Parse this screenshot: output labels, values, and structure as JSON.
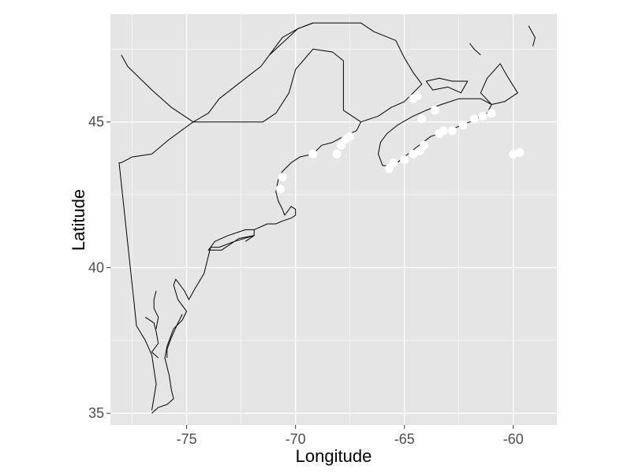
{
  "chart_data": {
    "type": "scatter",
    "title": "",
    "xlabel": "Longitude",
    "ylabel": "Latitude",
    "xlim": [
      -78.5,
      -58.0
    ],
    "ylim": [
      34.6,
      48.7
    ],
    "x_ticks": [
      -75,
      -70,
      -65,
      -60
    ],
    "y_ticks": [
      35,
      40,
      45
    ],
    "x_tick_labels": [
      "-75",
      "-70",
      "-65",
      "-60"
    ],
    "y_tick_labels": [
      "35",
      "40",
      "45"
    ],
    "grid": true,
    "legend": "none",
    "background_color": "#e5e5e5",
    "gridline_color": "#ffffff",
    "point_color": "#ffffff",
    "outline_color": "#000000",
    "series": [
      {
        "x": [
          -70.7,
          -70.6,
          -69.2,
          -68.1,
          -67.9,
          -67.7,
          -67.5,
          -65.7,
          -65.5,
          -65.0,
          -64.6,
          -64.3,
          -64.1,
          -64.6,
          -64.4,
          -64.2,
          -63.4,
          -63.6,
          -63.2,
          -62.8,
          -62.3,
          -61.8,
          -61.4,
          -61.0,
          -60.0,
          -59.7
        ],
        "y": [
          42.7,
          43.1,
          43.9,
          43.9,
          44.2,
          44.4,
          44.5,
          43.4,
          43.6,
          43.7,
          43.9,
          44.0,
          44.2,
          45.8,
          45.9,
          45.1,
          44.6,
          45.4,
          44.7,
          44.7,
          44.9,
          45.1,
          45.2,
          45.3,
          43.9,
          43.95
        ]
      }
    ],
    "coastline": [
      [
        [
          -76.6,
          35.0
        ],
        [
          -76.3,
          35.2
        ],
        [
          -75.9,
          35.3
        ],
        [
          -75.6,
          35.5
        ],
        [
          -75.7,
          35.8
        ],
        [
          -75.8,
          36.3
        ],
        [
          -76.0,
          36.9
        ],
        [
          -75.9,
          37.3
        ],
        [
          -75.6,
          37.9
        ],
        [
          -75.2,
          38.2
        ],
        [
          -75.0,
          38.5
        ],
        [
          -75.4,
          38.9
        ],
        [
          -75.6,
          39.4
        ],
        [
          -75.5,
          39.6
        ],
        [
          -75.1,
          39.2
        ],
        [
          -74.9,
          38.9
        ],
        [
          -74.6,
          39.3
        ],
        [
          -74.2,
          39.8
        ],
        [
          -74.0,
          40.4
        ],
        [
          -73.9,
          40.7
        ],
        [
          -73.5,
          40.7
        ],
        [
          -72.8,
          40.9
        ],
        [
          -71.9,
          41.1
        ],
        [
          -72.6,
          41.0
        ],
        [
          -73.4,
          40.6
        ],
        [
          -74.0,
          40.6
        ],
        [
          -73.7,
          40.9
        ],
        [
          -73.1,
          41.1
        ],
        [
          -72.3,
          41.3
        ],
        [
          -71.9,
          41.3
        ],
        [
          -71.3,
          41.5
        ],
        [
          -70.9,
          41.5
        ],
        [
          -70.6,
          41.6
        ],
        [
          -70.2,
          41.7
        ],
        [
          -70.0,
          41.8
        ],
        [
          -70.0,
          42.0
        ],
        [
          -70.2,
          42.1
        ],
        [
          -70.5,
          41.8
        ],
        [
          -70.6,
          42.0
        ],
        [
          -70.8,
          42.3
        ],
        [
          -70.9,
          42.6
        ],
        [
          -70.8,
          43.0
        ],
        [
          -70.6,
          43.3
        ],
        [
          -70.2,
          43.6
        ],
        [
          -69.8,
          43.8
        ],
        [
          -69.2,
          43.9
        ],
        [
          -68.8,
          44.2
        ],
        [
          -68.3,
          44.3
        ],
        [
          -67.8,
          44.5
        ],
        [
          -67.2,
          44.7
        ],
        [
          -67.0,
          45.0
        ]
      ],
      [
        [
          -67.0,
          45.0
        ],
        [
          -67.4,
          45.2
        ],
        [
          -67.8,
          45.4
        ],
        [
          -67.8,
          47.1
        ],
        [
          -68.3,
          47.4
        ],
        [
          -69.2,
          47.5
        ],
        [
          -70.0,
          46.8
        ],
        [
          -70.3,
          46.0
        ],
        [
          -70.9,
          45.3
        ],
        [
          -71.5,
          45.0
        ],
        [
          -72.5,
          45.0
        ],
        [
          -74.7,
          45.0
        ],
        [
          -75.7,
          45.5
        ],
        [
          -76.6,
          46.1
        ],
        [
          -77.7,
          46.9
        ],
        [
          -78.0,
          47.3
        ]
      ],
      [
        [
          -74.7,
          45.0
        ],
        [
          -75.8,
          44.4
        ],
        [
          -76.6,
          43.9
        ],
        [
          -77.5,
          43.8
        ],
        [
          -78.0,
          43.6
        ],
        [
          -78.1,
          43.6
        ],
        [
          -77.3,
          38.0
        ],
        [
          -76.9,
          37.5
        ],
        [
          -76.6,
          37.0
        ],
        [
          -76.4,
          36.0
        ],
        [
          -76.6,
          35.1
        ]
      ],
      [
        [
          -76.9,
          38.3
        ],
        [
          -76.5,
          38.1
        ],
        [
          -76.4,
          37.8
        ],
        [
          -76.3,
          37.4
        ],
        [
          -76.6,
          37.1
        ],
        [
          -76.3,
          36.9
        ]
      ],
      [
        [
          -76.4,
          39.2
        ],
        [
          -76.5,
          38.9
        ],
        [
          -76.5,
          38.6
        ],
        [
          -76.3,
          38.3
        ],
        [
          -76.4,
          37.9
        ]
      ],
      [
        [
          -75.2,
          38.4
        ],
        [
          -75.4,
          38.1
        ],
        [
          -75.7,
          37.6
        ],
        [
          -75.9,
          37.2
        ],
        [
          -75.9,
          36.9
        ]
      ],
      [
        [
          -71.9,
          41.3
        ],
        [
          -71.9,
          41.1
        ],
        [
          -72.3,
          40.9
        ]
      ],
      [
        [
          -67.0,
          45.0
        ],
        [
          -66.2,
          45.2
        ],
        [
          -65.6,
          45.5
        ],
        [
          -65.0,
          45.7
        ],
        [
          -64.6,
          46.0
        ],
        [
          -64.2,
          46.3
        ],
        [
          -64.6,
          46.7
        ],
        [
          -65.0,
          47.2
        ],
        [
          -65.4,
          47.8
        ],
        [
          -66.4,
          48.1
        ],
        [
          -67.0,
          48.4
        ],
        [
          -67.9,
          48.4
        ],
        [
          -69.2,
          48.4
        ],
        [
          -69.9,
          48.2
        ],
        [
          -70.6,
          47.9
        ],
        [
          -71.2,
          47.3
        ],
        [
          -71.6,
          46.9
        ],
        [
          -72.3,
          46.5
        ],
        [
          -73.5,
          45.8
        ],
        [
          -74.0,
          45.3
        ],
        [
          -74.7,
          45.0
        ]
      ],
      [
        [
          -69.2,
          48.4
        ],
        [
          -69.9,
          48.2
        ],
        [
          -71.2,
          47.3
        ]
      ],
      [
        [
          -66.0,
          43.5
        ],
        [
          -65.5,
          43.5
        ],
        [
          -65.0,
          43.8
        ],
        [
          -64.5,
          44.1
        ],
        [
          -63.8,
          44.5
        ],
        [
          -63.0,
          44.7
        ],
        [
          -62.0,
          45.0
        ],
        [
          -61.2,
          45.3
        ],
        [
          -61.0,
          45.6
        ],
        [
          -61.5,
          45.8
        ],
        [
          -62.5,
          45.8
        ],
        [
          -63.3,
          45.6
        ],
        [
          -64.0,
          45.4
        ],
        [
          -64.6,
          45.2
        ],
        [
          -65.3,
          44.9
        ],
        [
          -65.8,
          44.6
        ],
        [
          -66.1,
          44.3
        ],
        [
          -66.2,
          43.9
        ],
        [
          -66.0,
          43.5
        ]
      ],
      [
        [
          -61.0,
          45.6
        ],
        [
          -60.4,
          45.7
        ],
        [
          -59.8,
          46.0
        ],
        [
          -60.3,
          46.6
        ],
        [
          -60.6,
          47.0
        ],
        [
          -61.2,
          46.5
        ],
        [
          -61.5,
          46.0
        ],
        [
          -61.0,
          45.6
        ]
      ],
      [
        [
          -64.0,
          46.4
        ],
        [
          -63.4,
          46.5
        ],
        [
          -62.8,
          46.4
        ],
        [
          -62.1,
          46.4
        ],
        [
          -62.4,
          46.0
        ],
        [
          -63.0,
          46.2
        ],
        [
          -63.7,
          46.1
        ],
        [
          -64.0,
          46.4
        ]
      ],
      [
        [
          -59.1,
          47.6
        ],
        [
          -59.0,
          47.9
        ],
        [
          -59.3,
          48.3
        ]
      ],
      [
        [
          -61.5,
          47.3
        ],
        [
          -61.8,
          47.5
        ],
        [
          -62.0,
          47.7
        ]
      ]
    ]
  }
}
